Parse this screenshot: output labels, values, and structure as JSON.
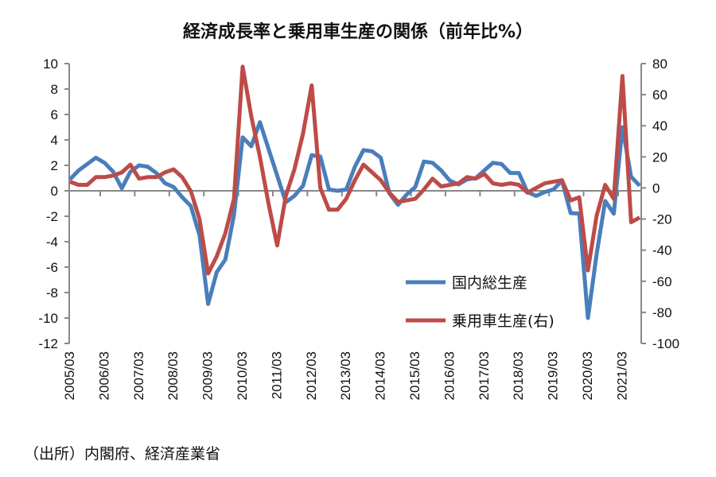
{
  "chart_data": {
    "type": "line",
    "title": "経済成長率と乗用車生産の関係（前年比%）",
    "x_tick_labels": [
      "2005/03",
      "2006/03",
      "2007/03",
      "2008/03",
      "2009/03",
      "2010/03",
      "2011/03",
      "2012/03",
      "2013/03",
      "2014/03",
      "2015/03",
      "2016/03",
      "2017/03",
      "2018/03",
      "2019/03",
      "2020/03",
      "2021/03"
    ],
    "x_tick_every": 4,
    "y_left": {
      "lim": [
        -12,
        10
      ],
      "step": 2
    },
    "y_right": {
      "lim": [
        -100,
        80
      ],
      "step": 20
    },
    "grid": false,
    "legend_position": "bottom-right",
    "series": [
      {
        "name": "国内総生産",
        "axis": "left",
        "color": "#4a7ebb",
        "values": [
          0.9,
          1.6,
          2.1,
          2.6,
          2.2,
          1.5,
          0.2,
          1.5,
          2.0,
          1.9,
          1.4,
          0.6,
          0.3,
          -0.5,
          -1.2,
          -3.5,
          -8.9,
          -6.4,
          -5.4,
          -1.9,
          4.2,
          3.5,
          5.4,
          3.3,
          1.2,
          -0.9,
          -0.4,
          0.4,
          2.8,
          2.7,
          0.1,
          0.0,
          0.1,
          1.9,
          3.2,
          3.1,
          2.6,
          -0.2,
          -1.1,
          -0.3,
          0.3,
          2.3,
          2.2,
          1.6,
          0.8,
          0.5,
          0.9,
          1.0,
          1.6,
          2.2,
          2.1,
          1.4,
          1.4,
          -0.1,
          -0.4,
          -0.1,
          0.1,
          0.8,
          -1.75,
          -1.8,
          -10,
          -5,
          -0.8,
          -1.8,
          5.0,
          1.1,
          0.4
        ]
      },
      {
        "name": "乗用車生産(右)",
        "axis": "right",
        "color": "#be4b48",
        "values": [
          4,
          2,
          2,
          7,
          7,
          8,
          10,
          15,
          6,
          7,
          7,
          10,
          12,
          7,
          -2,
          -20,
          -55,
          -44,
          -29,
          -7,
          78,
          46,
          20,
          -10,
          -37,
          -5,
          12,
          35,
          66,
          0,
          -14,
          -14,
          -7,
          5,
          15,
          10,
          5,
          -3,
          -9,
          -8,
          -7,
          -1,
          6,
          1,
          2,
          3,
          7,
          6,
          9,
          3,
          2,
          3,
          2,
          -3,
          0,
          3,
          4,
          5,
          -8,
          -6,
          -53,
          -18,
          2,
          -7,
          72,
          -22,
          -19
        ]
      }
    ]
  },
  "source": "（出所）内閣府、経済産業省"
}
